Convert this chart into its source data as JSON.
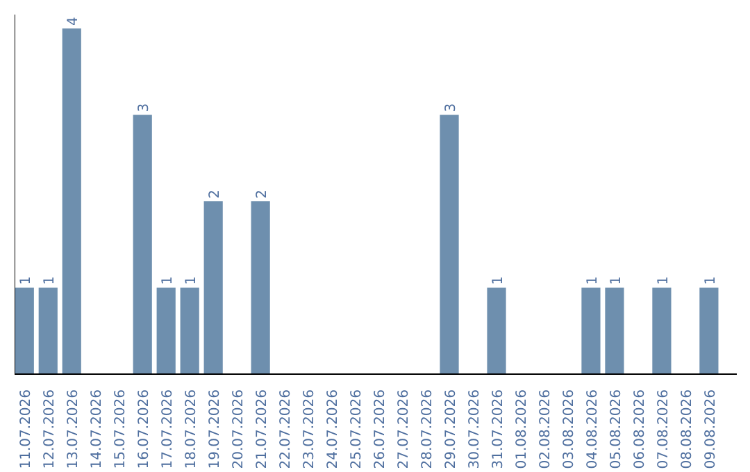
{
  "chart_data": {
    "type": "bar",
    "categories": [
      "11.07.2026",
      "12.07.2026",
      "13.07.2026",
      "14.07.2026",
      "15.07.2026",
      "16.07.2026",
      "17.07.2026",
      "18.07.2026",
      "19.07.2026",
      "20.07.2026",
      "21.07.2026",
      "22.07.2026",
      "23.07.2026",
      "24.07.2026",
      "25.07.2026",
      "26.07.2026",
      "27.07.2026",
      "28.07.2026",
      "29.07.2026",
      "30.07.2026",
      "31.07.2026",
      "01.08.2026",
      "02.08.2026",
      "03.08.2026",
      "04.08.2026",
      "05.08.2026",
      "06.08.2026",
      "07.08.2026",
      "08.08.2026",
      "09.08.2026"
    ],
    "values": [
      1,
      1,
      4,
      0,
      0,
      3,
      1,
      1,
      2,
      0,
      2,
      0,
      0,
      0,
      0,
      0,
      0,
      0,
      3,
      0,
      1,
      0,
      0,
      0,
      1,
      1,
      0,
      1,
      0,
      1
    ],
    "value_labels": [
      "1",
      "1",
      "4",
      null,
      null,
      "3",
      "1",
      "1",
      "2",
      null,
      "2",
      null,
      null,
      null,
      null,
      null,
      null,
      null,
      "3",
      null,
      "1",
      null,
      null,
      null,
      "1",
      "1",
      null,
      "1",
      null,
      "1"
    ],
    "color": "#6e8fae",
    "ylim": [
      0,
      4.16
    ],
    "tick_labels": "x"
  }
}
